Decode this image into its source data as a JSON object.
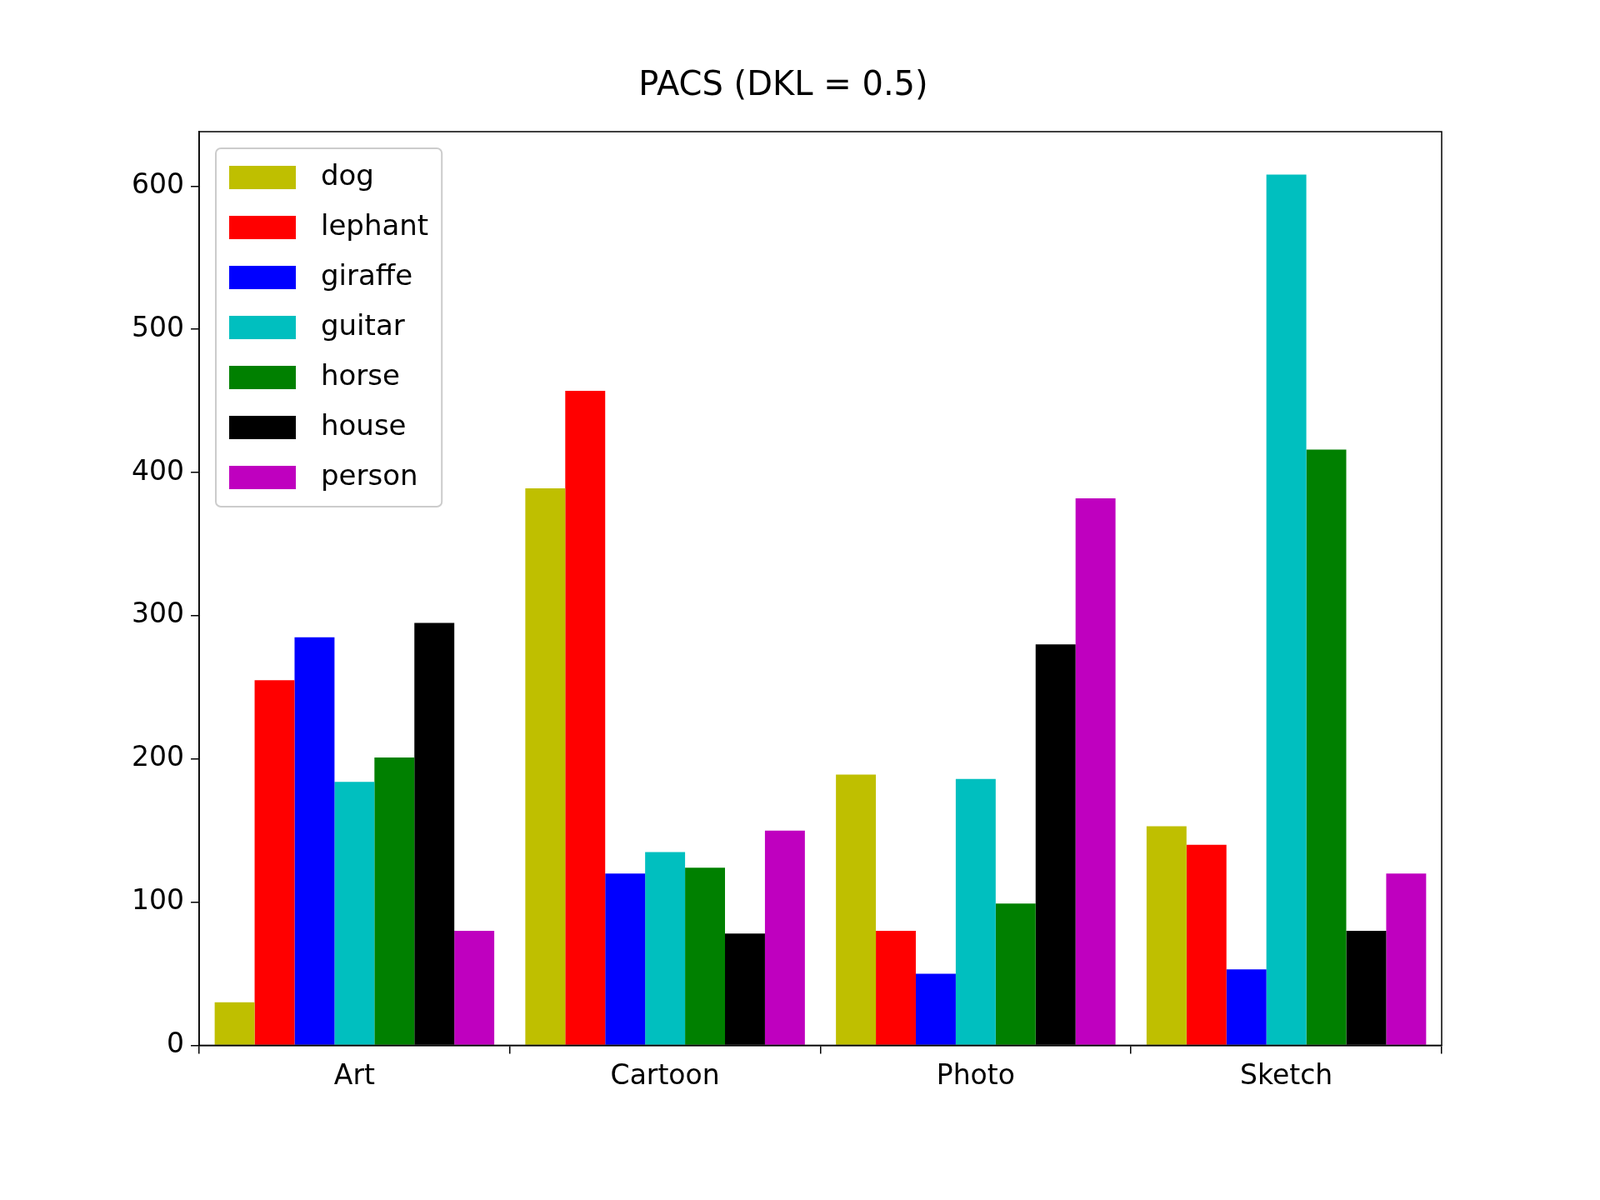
{
  "chart_data": {
    "type": "bar",
    "title": "PACS (DKL = 0.5)",
    "categories": [
      "Art",
      "Cartoon",
      "Photo",
      "Sketch"
    ],
    "series": [
      {
        "name": "dog",
        "color": "#bfbf00",
        "values": [
          30,
          389,
          189,
          153
        ]
      },
      {
        "name": "lephant",
        "color": "#ff0000",
        "values": [
          255,
          457,
          80,
          140
        ]
      },
      {
        "name": "giraffe",
        "color": "#0000ff",
        "values": [
          285,
          120,
          50,
          53
        ]
      },
      {
        "name": "guitar",
        "color": "#00bfbf",
        "values": [
          184,
          135,
          186,
          608
        ]
      },
      {
        "name": "horse",
        "color": "#008000",
        "values": [
          201,
          124,
          99,
          416
        ]
      },
      {
        "name": "house",
        "color": "#000000",
        "values": [
          295,
          78,
          280,
          80
        ]
      },
      {
        "name": "person",
        "color": "#bf00bf",
        "values": [
          80,
          150,
          382,
          120
        ]
      }
    ],
    "ylim": [
      0,
      638
    ],
    "yticks": [
      0,
      100,
      200,
      300,
      400,
      500,
      600
    ],
    "grid": false,
    "legend": "upper left"
  }
}
